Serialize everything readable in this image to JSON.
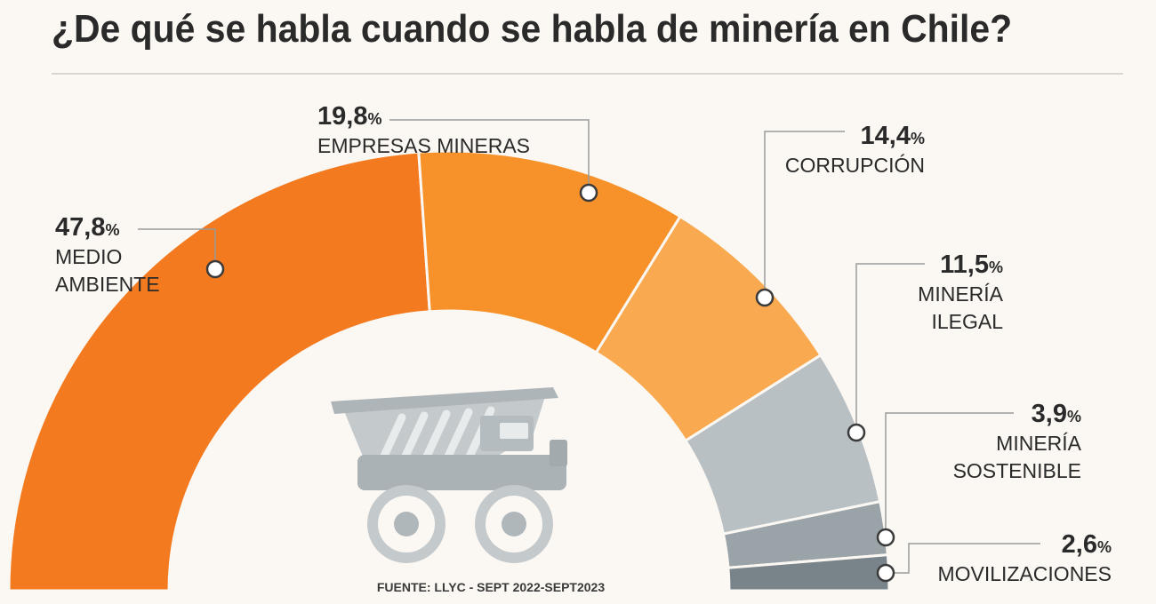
{
  "title": "¿De qué se habla cuando se habla de minería en Chile?",
  "source": "FUENTE: LLYC - SEPT 2022-SEPT2023",
  "chart_data": {
    "type": "pie",
    "layout": "half-donut",
    "title": "¿De qué se habla cuando se habla de minería en Chile?",
    "unit": "%",
    "series": [
      {
        "pct_label": "47,8",
        "name_lines": [
          "MEDIO",
          "AMBIENTE"
        ],
        "value": 47.8,
        "color": "#f47a20"
      },
      {
        "pct_label": "19,8",
        "name_lines": [
          "EMPRESAS MINERAS"
        ],
        "value": 19.8,
        "color": "#f7922a"
      },
      {
        "pct_label": "14,4",
        "name_lines": [
          "CORRUPCIÓN"
        ],
        "value": 14.4,
        "color": "#f9a94f"
      },
      {
        "pct_label": "11,5",
        "name_lines": [
          "MINERÍA",
          "ILEGAL"
        ],
        "value": 11.5,
        "color": "#b9c0c4"
      },
      {
        "pct_label": "3,9",
        "name_lines": [
          "MINERÍA",
          "SOSTENIBLE"
        ],
        "value": 3.9,
        "color": "#9aa3a8"
      },
      {
        "pct_label": "2,6",
        "name_lines": [
          "MOVILIZACIONES"
        ],
        "value": 2.6,
        "color": "#79838a"
      }
    ]
  }
}
